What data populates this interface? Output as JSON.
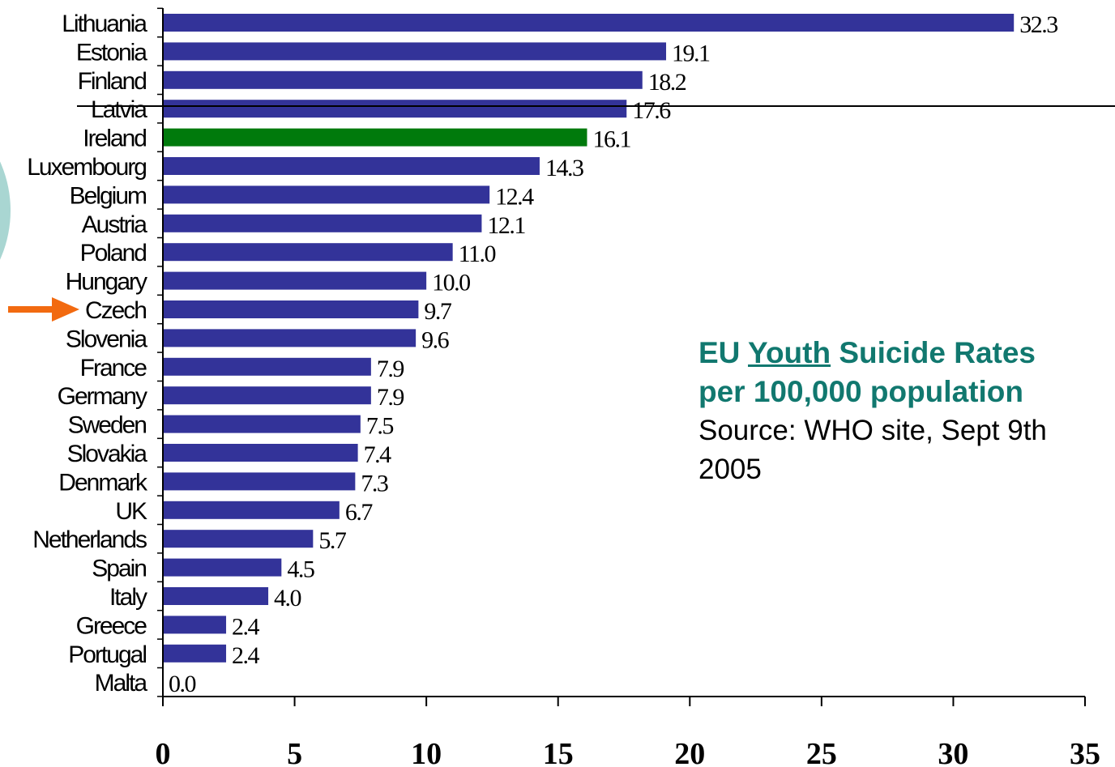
{
  "chart_data": {
    "type": "bar",
    "orientation": "horizontal",
    "categories": [
      "Lithuania",
      "Estonia",
      "Finland",
      "Latvia",
      "Ireland",
      "Luxembourg",
      "Belgium",
      "Austria",
      "Poland",
      "Hungary",
      "Czech",
      "Slovenia",
      "France",
      "Germany",
      "Sweden",
      "Slovakia",
      "Denmark",
      "UK",
      "Netherlands",
      "Spain",
      "Italy",
      "Greece",
      "Portugal",
      "Malta"
    ],
    "values": [
      32.3,
      19.1,
      18.2,
      17.6,
      16.1,
      14.3,
      12.4,
      12.1,
      11.0,
      10.0,
      9.7,
      9.6,
      7.9,
      7.9,
      7.5,
      7.4,
      7.3,
      6.7,
      5.7,
      4.5,
      4.0,
      2.4,
      2.4,
      0.0
    ],
    "value_labels": [
      "32.3",
      "19.1",
      "18.2",
      "17.6",
      "16.1",
      "14.3",
      "12.4",
      "12.1",
      "11.0",
      "10.0",
      "9.7",
      "9.6",
      "7.9",
      "7.9",
      "7.5",
      "7.4",
      "7.3",
      "6.7",
      "5.7",
      "4.5",
      "4.0",
      "2.4",
      "2.4",
      "0.0"
    ],
    "highlight_category": "Ireland",
    "arrow_category": "Czech",
    "xlim": [
      0,
      35
    ],
    "xticks": [
      "0",
      "5",
      "10",
      "15",
      "20",
      "25",
      "30",
      "35"
    ],
    "grid": false,
    "colors": {
      "bar": "#333399",
      "highlight": "#007a0c",
      "arrow": "#f26a10",
      "caption": "#11786f",
      "decor_circle": "#a9d6d2"
    }
  },
  "caption": {
    "prefix": "EU ",
    "underlined": "Youth",
    "suffix": " Suicide Rates",
    "line2": "per 100,000 population",
    "source": "Source: WHO site, Sept 9th 2005"
  }
}
